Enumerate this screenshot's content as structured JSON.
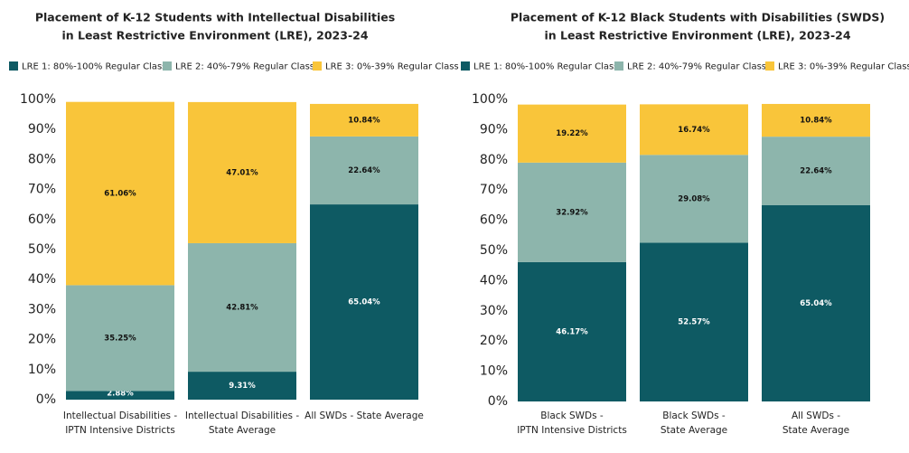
{
  "chart_data": [
    {
      "type": "stacked-bar",
      "title": [
        "Placement of K-12 Students with Intellectual Disabilities",
        "in Least Restrictive Environment (LRE), 2023-24"
      ],
      "categories": [
        [
          "Intellectual Disabilities -",
          "IPTN Intensive Districts"
        ],
        [
          "Intellectual Disabilities -",
          "State Average"
        ],
        [
          "All SWDs - State Average"
        ]
      ],
      "series": [
        {
          "name": "LRE 1: 80%-100% Regular Class",
          "color": "#0e5a63",
          "values": [
            2.88,
            9.31,
            65.04
          ],
          "value_labels": [
            "2.88%",
            "9.31%",
            "65.04%"
          ]
        },
        {
          "name": "LRE 2: 40%-79% Regular Class",
          "color": "#8db5ac",
          "values": [
            35.25,
            42.81,
            22.64
          ],
          "value_labels": [
            "35.25%",
            "42.81%",
            "22.64%"
          ]
        },
        {
          "name": "LRE 3: 0%-39% Regular Class",
          "color": "#f9c53a",
          "values": [
            61.06,
            47.01,
            10.84
          ],
          "value_labels": [
            "61.06%",
            "47.01%",
            "10.84%"
          ]
        }
      ],
      "ylim": [
        0,
        100
      ],
      "yticks": [
        {
          "value": 0,
          "label": "0%"
        },
        {
          "value": 10,
          "label": "10%"
        },
        {
          "value": 20,
          "label": "20%"
        },
        {
          "value": 30,
          "label": "30%"
        },
        {
          "value": 40,
          "label": "40%"
        },
        {
          "value": 50,
          "label": "50%"
        },
        {
          "value": 60,
          "label": "60%"
        },
        {
          "value": 70,
          "label": "70%"
        },
        {
          "value": 80,
          "label": "80%"
        },
        {
          "value": 90,
          "label": "90%"
        },
        {
          "value": 100,
          "label": "100%"
        }
      ]
    },
    {
      "type": "stacked-bar",
      "title": [
        "Placement of K-12 Black Students with Disabilities (SWDS)",
        "in Least Restrictive Environment (LRE), 2023-24"
      ],
      "categories": [
        [
          "Black SWDs -",
          "IPTN Intensive Districts"
        ],
        [
          "Black SWDs -",
          "State Average"
        ],
        [
          "All SWDs -",
          "State Average"
        ]
      ],
      "series": [
        {
          "name": "LRE 1: 80%-100% Regular Class",
          "color": "#0e5a63",
          "values": [
            46.17,
            52.57,
            65.04
          ],
          "value_labels": [
            "46.17%",
            "52.57%",
            "65.04%"
          ]
        },
        {
          "name": "LRE 2: 40%-79% Regular Class",
          "color": "#8db5ac",
          "values": [
            32.92,
            29.08,
            22.64
          ],
          "value_labels": [
            "32.92%",
            "29.08%",
            "22.64%"
          ]
        },
        {
          "name": "LRE 3: 0%-39% Regular Class",
          "color": "#f9c53a",
          "values": [
            19.22,
            16.74,
            10.84
          ],
          "value_labels": [
            "19.22%",
            "16.74%",
            "10.84%"
          ]
        }
      ],
      "ylim": [
        0,
        100
      ],
      "yticks": [
        {
          "value": 0,
          "label": "0%"
        },
        {
          "value": 10,
          "label": "10%"
        },
        {
          "value": 20,
          "label": "20%"
        },
        {
          "value": 30,
          "label": "30%"
        },
        {
          "value": 40,
          "label": "40%"
        },
        {
          "value": 50,
          "label": "50%"
        },
        {
          "value": 60,
          "label": "60%"
        },
        {
          "value": 70,
          "label": "70%"
        },
        {
          "value": 80,
          "label": "80%"
        },
        {
          "value": 90,
          "label": "90%"
        },
        {
          "value": 100,
          "label": "100%"
        }
      ]
    }
  ]
}
